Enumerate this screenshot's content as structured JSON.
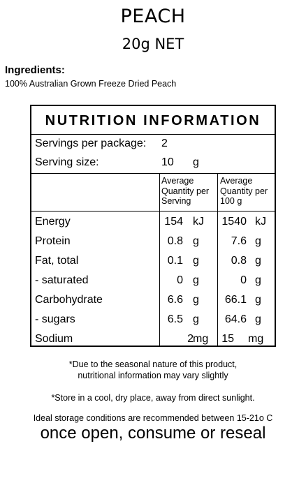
{
  "product": {
    "name": "PEACH",
    "net": "20g NET"
  },
  "ingredients": {
    "heading": "Ingredients:",
    "text": "100% Australian Grown Freeze Dried Peach"
  },
  "panel": {
    "title": "NUTRITION INFORMATION",
    "servings_label": "Servings per package:",
    "servings_value": "2",
    "serving_size_label": "Serving size:",
    "serving_size_value": "10",
    "serving_size_unit": "g",
    "col1_header": [
      "Average",
      "Quantity per",
      "Serving"
    ],
    "col2_header": [
      "Average",
      "Quantity per",
      "100 g"
    ],
    "rows": [
      {
        "label": "Energy",
        "v1": "154",
        "u1": "kJ",
        "v2": "1540",
        "u2": "kJ"
      },
      {
        "label": "Protein",
        "v1": "0.8",
        "u1": "g",
        "v2": "7.6",
        "u2": "g"
      },
      {
        "label": "Fat, total",
        "v1": "0.1",
        "u1": "g",
        "v2": "0.8",
        "u2": "g"
      },
      {
        "label": "- saturated",
        "v1": "0",
        "u1": "g",
        "v2": "0",
        "u2": "g"
      },
      {
        "label": "Carbohydrate",
        "v1": "6.6",
        "u1": "g",
        "v2": "66.1",
        "u2": "g"
      },
      {
        "label": "- sugars",
        "v1": "6.5",
        "u1": "g",
        "v2": "64.6",
        "u2": "g"
      },
      {
        "label": "Sodium",
        "v1": "2",
        "u1": "mg",
        "v2": "15",
        "u2": "mg"
      }
    ]
  },
  "notes": {
    "seasonal_1": "*Due to the seasonal nature of this product,",
    "seasonal_2": "nutritional information may vary slightly",
    "store": "*Store in a cool, dry place, away from direct sunlight.",
    "ideal": "Ideal storage conditions are recommended between 15-21o C",
    "reseal": "once open, consume or reseal"
  }
}
